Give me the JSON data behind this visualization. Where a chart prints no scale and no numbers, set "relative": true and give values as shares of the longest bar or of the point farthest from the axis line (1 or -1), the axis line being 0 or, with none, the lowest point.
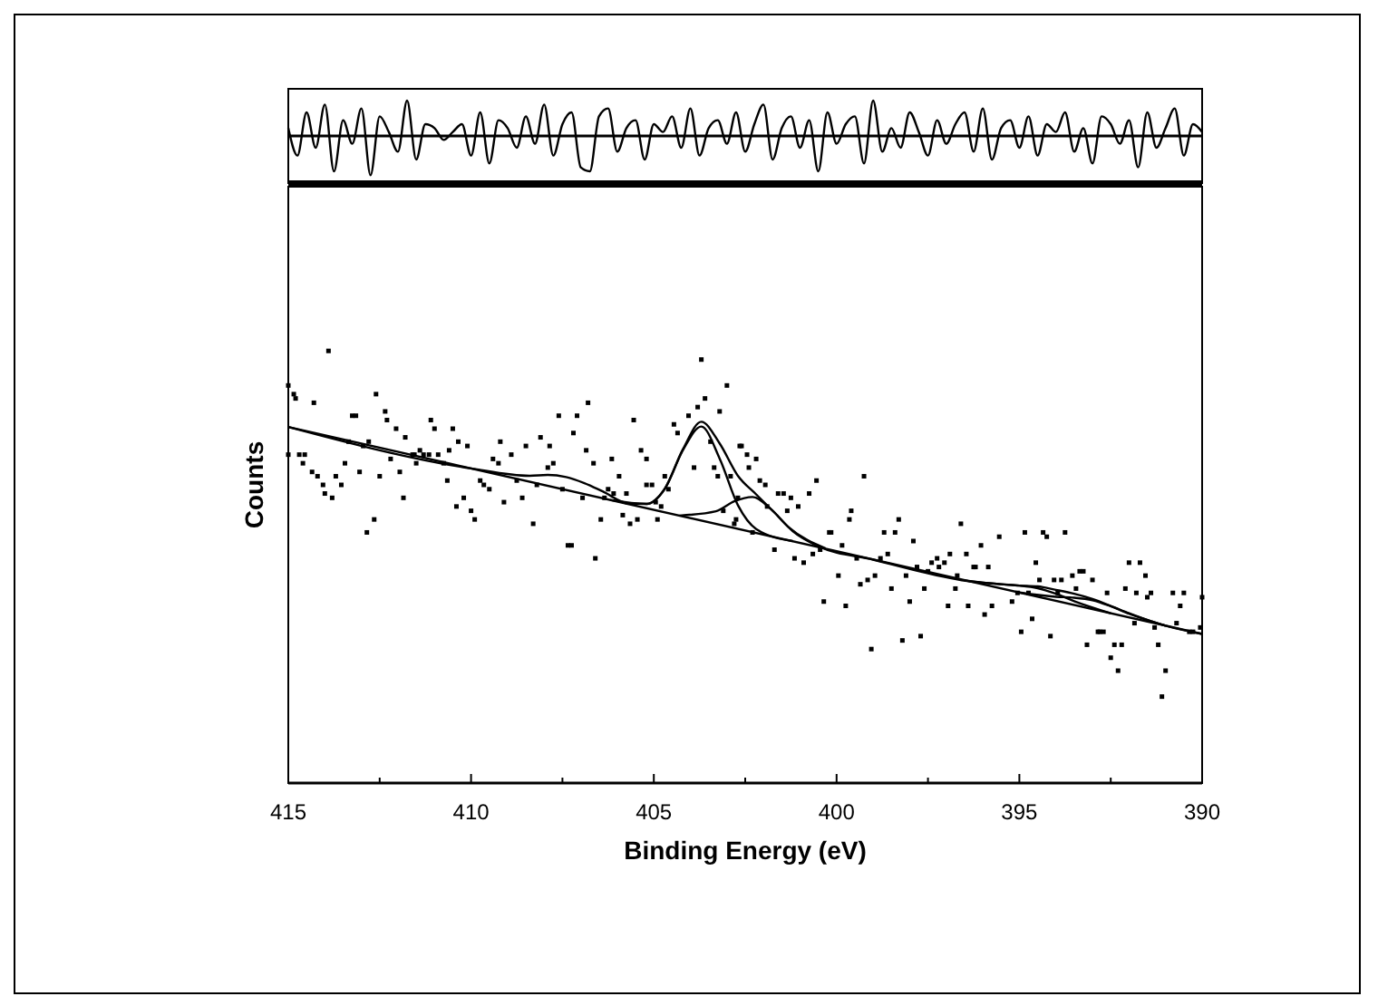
{
  "chart_data": [
    {
      "type": "line",
      "relative": true,
      "xlim": [
        415,
        390
      ],
      "tick_labels": false,
      "series": [
        {
          "color": "#000000",
          "x": [
            415,
            414.75,
            414.5,
            414.25,
            414,
            413.75,
            413.5,
            413.25,
            413,
            412.75,
            412.5,
            412.25,
            412,
            411.75,
            411.5,
            411.25,
            411,
            410.75,
            410.5,
            410.25,
            410,
            409.75,
            409.5,
            409.25,
            409,
            408.75,
            408.5,
            408.25,
            408,
            407.75,
            407.5,
            407.25,
            407,
            406.75,
            406.5,
            406.25,
            406,
            405.75,
            405.5,
            405.25,
            405,
            404.75,
            404.5,
            404.25,
            404,
            403.75,
            403.5,
            403.25,
            403,
            402.75,
            402.5,
            402.25,
            402,
            401.75,
            401.5,
            401.25,
            401,
            400.75,
            400.5,
            400.25,
            400,
            399.75,
            399.5,
            399.25,
            399,
            398.75,
            398.5,
            398.25,
            398,
            397.75,
            397.5,
            397.25,
            397,
            396.75,
            396.5,
            396.25,
            396,
            395.75,
            395.5,
            395.25,
            395,
            394.75,
            394.5,
            394.25,
            394,
            393.75,
            393.5,
            393.25,
            393,
            392.75,
            392.5,
            392.25,
            392,
            391.75,
            391.5,
            391.25,
            391,
            390.75,
            390.5,
            390.25,
            390
          ],
          "values": [
            0.2,
            -0.5,
            0.6,
            -0.3,
            0.8,
            -0.9,
            0.4,
            -0.2,
            0.7,
            -1.0,
            0.5,
            0.1,
            -0.4,
            0.9,
            -0.6,
            0.3,
            0.2,
            -0.1,
            0.1,
            0.3,
            -0.5,
            0.6,
            -0.7,
            0.4,
            0.2,
            -0.3,
            0.5,
            -0.2,
            0.8,
            -0.5,
            0.3,
            0.6,
            -0.8,
            -0.9,
            0.5,
            0.7,
            -0.4,
            0.2,
            0.4,
            -0.6,
            0.3,
            0.1,
            0.5,
            -0.3,
            0.7,
            -0.5,
            0.2,
            0.4,
            -0.2,
            0.6,
            -0.4,
            0.3,
            0.8,
            -0.6,
            0.2,
            0.5,
            -0.3,
            0.4,
            -0.9,
            0.6,
            -0.2,
            0.3,
            0.5,
            -0.7,
            0.9,
            -0.4,
            0.2,
            -0.3,
            0.6,
            0.1,
            -0.5,
            0.4,
            -0.2,
            0.3,
            0.6,
            -0.4,
            0.7,
            -0.6,
            0.2,
            0.4,
            -0.3,
            0.5,
            -0.5,
            0.3,
            0.1,
            0.6,
            -0.4,
            0.2,
            -0.7,
            0.5,
            0.3,
            -0.2,
            0.4,
            -0.8,
            0.6,
            -0.3,
            0.2,
            0.7,
            -0.5,
            0.3,
            0.1
          ]
        }
      ]
    },
    {
      "type": "scatter",
      "relative": true,
      "xlabel": "Binding Energy (eV)",
      "ylabel": "Counts",
      "xlim": [
        415,
        390
      ],
      "xticks": [
        415,
        {
          "value": 412.5,
          "label": null
        },
        410,
        {
          "value": 407.5,
          "label": null
        },
        405,
        {
          "value": 402.5,
          "label": null
        },
        400,
        {
          "value": 397.5,
          "label": null
        },
        395,
        {
          "value": 392.5,
          "label": null
        },
        390
      ],
      "tick_labels": "x",
      "grid": false,
      "series": [
        {
          "marker": "square",
          "color": "#000000",
          "x": [
            415.0,
            414.85,
            414.8,
            415.0,
            414.7,
            414.55,
            414.6,
            414.35,
            414.2,
            414.05,
            414.0,
            413.8,
            414.3,
            413.9,
            413.7,
            413.55,
            413.45,
            413.35,
            413.25,
            413.15,
            413.05,
            412.95,
            412.85,
            412.8,
            412.65,
            412.6,
            412.5,
            412.35,
            412.3,
            412.2,
            412.05,
            411.95,
            411.85,
            411.8,
            411.6,
            411.55,
            411.5,
            411.4,
            411.3,
            411.15,
            411.1,
            411.0,
            410.9,
            410.75,
            410.65,
            410.6,
            410.5,
            410.4,
            410.35,
            410.2,
            410.1,
            410.0,
            409.9,
            409.75,
            409.65,
            409.5,
            409.4,
            409.25,
            409.2,
            409.1,
            408.9,
            408.75,
            408.6,
            408.5,
            408.3,
            408.2,
            408.1,
            407.9,
            407.85,
            407.75,
            407.6,
            407.5,
            407.35,
            407.25,
            407.2,
            407.1,
            406.95,
            406.85,
            406.8,
            406.65,
            406.6,
            406.45,
            406.35,
            406.25,
            406.15,
            406.1,
            405.95,
            405.85,
            405.75,
            405.65,
            405.55,
            405.45,
            405.35,
            405.2,
            405.2,
            405.05,
            404.95,
            404.9,
            404.8,
            404.7,
            404.6,
            404.45,
            404.35,
            404.05,
            403.9,
            403.8,
            403.7,
            403.6,
            403.45,
            403.35,
            403.2,
            403.25,
            403.1,
            403.0,
            402.75,
            402.65,
            402.6,
            402.45,
            402.4,
            402.2,
            402.9,
            402.8,
            402.7,
            402.3,
            402.1,
            401.95,
            401.9,
            401.7,
            401.6,
            401.45,
            401.35,
            401.25,
            401.15,
            401.05,
            400.9,
            400.75,
            400.65,
            400.55,
            400.45,
            400.35,
            400.2,
            400.15,
            399.95,
            399.85,
            399.75,
            399.65,
            399.6,
            399.45,
            399.35,
            399.25,
            399.15,
            399.05,
            398.95,
            398.8,
            398.7,
            398.6,
            398.5,
            398.4,
            398.3,
            398.2,
            398.1,
            398.0,
            397.9,
            397.8,
            397.7,
            397.6,
            397.5,
            397.4,
            397.25,
            397.2,
            397.05,
            396.95,
            396.9,
            396.75,
            396.7,
            396.6,
            396.45,
            396.4,
            396.25,
            396.2,
            396.05,
            395.95,
            395.85,
            395.75,
            395.55,
            395.2,
            395.05,
            394.95,
            394.85,
            394.75,
            394.65,
            394.55,
            394.45,
            394.35,
            394.25,
            394.15,
            394.05,
            393.95,
            393.85,
            393.75,
            393.55,
            393.45,
            393.35,
            393.25,
            393.15,
            393.0,
            392.85,
            392.8,
            392.7,
            392.6,
            392.5,
            392.4,
            392.3,
            392.2,
            392.1,
            392.0,
            391.85,
            391.8,
            391.7,
            391.55,
            391.5,
            391.4,
            391.3,
            391.2,
            391.1,
            391.0,
            390.8,
            390.7,
            390.6,
            390.5,
            390.35,
            390.25,
            390.05,
            390.0
          ],
          "values": [
            0.92,
            0.9,
            0.89,
            0.76,
            0.76,
            0.76,
            0.74,
            0.72,
            0.71,
            0.69,
            0.67,
            0.66,
            0.88,
            1.0,
            0.71,
            0.69,
            0.74,
            0.79,
            0.85,
            0.85,
            0.72,
            0.78,
            0.58,
            0.79,
            0.61,
            0.9,
            0.71,
            0.86,
            0.84,
            0.75,
            0.82,
            0.72,
            0.66,
            0.8,
            0.76,
            0.76,
            0.74,
            0.77,
            0.76,
            0.76,
            0.84,
            0.82,
            0.76,
            0.74,
            0.7,
            0.77,
            0.82,
            0.64,
            0.79,
            0.66,
            0.78,
            0.63,
            0.61,
            0.7,
            0.69,
            0.68,
            0.75,
            0.74,
            0.79,
            0.65,
            0.76,
            0.7,
            0.66,
            0.78,
            0.6,
            0.69,
            0.8,
            0.73,
            0.78,
            0.74,
            0.85,
            0.68,
            0.55,
            0.55,
            0.81,
            0.85,
            0.66,
            0.77,
            0.88,
            0.74,
            0.52,
            0.61,
            0.66,
            0.68,
            0.75,
            0.67,
            0.71,
            0.62,
            0.67,
            0.6,
            0.84,
            0.61,
            0.77,
            0.69,
            0.75,
            0.69,
            0.65,
            0.61,
            0.64,
            0.71,
            0.68,
            0.83,
            0.81,
            0.85,
            0.73,
            0.87,
            0.98,
            0.89,
            0.79,
            0.73,
            0.86,
            0.71,
            0.63,
            0.92,
            0.61,
            0.78,
            0.78,
            0.76,
            0.73,
            0.75,
            0.71,
            0.6,
            0.66,
            0.58,
            0.7,
            0.69,
            0.64,
            0.54,
            0.67,
            0.67,
            0.63,
            0.66,
            0.52,
            0.64,
            0.51,
            0.67,
            0.53,
            0.7,
            0.54,
            0.42,
            0.58,
            0.58,
            0.48,
            0.55,
            0.41,
            0.61,
            0.63,
            0.52,
            0.46,
            0.71,
            0.47,
            0.31,
            0.48,
            0.52,
            0.58,
            0.53,
            0.45,
            0.58,
            0.61,
            0.33,
            0.48,
            0.42,
            0.56,
            0.5,
            0.34,
            0.45,
            0.49,
            0.51,
            0.52,
            0.5,
            0.51,
            0.41,
            0.53,
            0.45,
            0.48,
            0.6,
            0.53,
            0.41,
            0.5,
            0.5,
            0.55,
            0.39,
            0.5,
            0.41,
            0.57,
            0.42,
            0.44,
            0.35,
            0.58,
            0.44,
            0.38,
            0.51,
            0.47,
            0.58,
            0.57,
            0.34,
            0.47,
            0.44,
            0.47,
            0.58,
            0.48,
            0.45,
            0.49,
            0.49,
            0.32,
            0.47,
            0.35,
            0.35,
            0.35,
            0.44,
            0.29,
            0.32,
            0.26,
            0.32,
            0.45,
            0.51,
            0.37,
            0.44,
            0.51,
            0.48,
            0.43,
            0.44,
            0.36,
            0.32,
            0.2,
            0.26,
            0.44,
            0.37,
            0.41,
            0.44,
            0.35,
            0.35,
            0.36,
            0.43
          ]
        },
        {
          "type": "line",
          "color": "#000000",
          "x": [
            415,
            390
          ],
          "values": [
            0.824,
            0.345
          ]
        },
        {
          "type": "line",
          "color": "#000000",
          "x": [
            415,
            410,
            408.4,
            407.9,
            407.4,
            406.9,
            406.4,
            405.7,
            405.2,
            404.7,
            404.2,
            403.7,
            403.2,
            402.7,
            402.2,
            401.7,
            401.2,
            400.5,
            399,
            396.3,
            395.5,
            395,
            394.5,
            394,
            393.5,
            393,
            392.5,
            392,
            391,
            390
          ],
          "values": [
            0.824,
            0.728,
            0.711,
            0.713,
            0.708,
            0.694,
            0.675,
            0.647,
            0.646,
            0.681,
            0.773,
            0.836,
            0.786,
            0.711,
            0.668,
            0.626,
            0.583,
            0.548,
            0.517,
            0.466,
            0.46,
            0.457,
            0.455,
            0.447,
            0.438,
            0.426,
            0.41,
            0.393,
            0.364,
            0.345
          ]
        },
        {
          "type": "line",
          "color": "#000000",
          "x": [
            406.2,
            405.2,
            404.7,
            404.2,
            403.7,
            403.2,
            402.7,
            402.2,
            401.2
          ],
          "values": [
            0.655,
            0.646,
            0.681,
            0.771,
            0.825,
            0.751,
            0.643,
            0.588,
            0.56
          ]
        },
        {
          "type": "line",
          "color": "#000000",
          "x": [
            404.3,
            403.3,
            402.8,
            402.3,
            401.8,
            401.3,
            400.3
          ],
          "values": [
            0.619,
            0.629,
            0.652,
            0.662,
            0.634,
            0.591,
            0.543
          ]
        },
        {
          "type": "line",
          "color": "#000000",
          "x": [
            396.5,
            395.5,
            395,
            394.5,
            394,
            393.5,
            392.5
          ],
          "values": [
            0.469,
            0.46,
            0.457,
            0.451,
            0.438,
            0.421,
            0.393
          ]
        },
        {
          "type": "line",
          "color": "#000000",
          "x": [
            395,
            394,
            393.5,
            393,
            392.5,
            392,
            391
          ],
          "values": [
            0.441,
            0.431,
            0.429,
            0.423,
            0.409,
            0.392,
            0.364
          ]
        }
      ]
    }
  ]
}
